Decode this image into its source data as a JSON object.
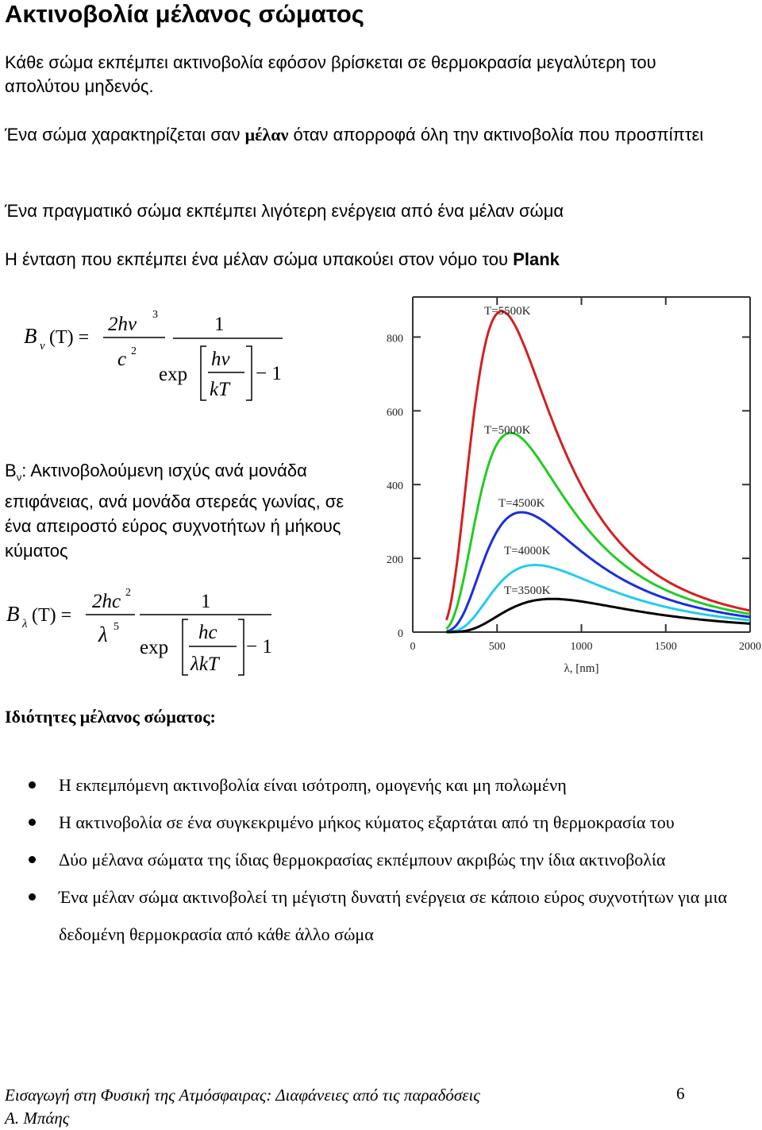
{
  "page_title": "Ακτινοβολία μέλανος σώματος",
  "paragraphs": {
    "p1": "Κάθε σώμα εκπέμπει ακτινοβολία εφόσον βρίσκεται σε θερμοκρασία μεγαλύτερη του απολύτου μηδενός.",
    "p2_before": "Ένα σώμα χαρακτηρίζεται σαν ",
    "p2_bold": "μέλαν",
    "p2_after": " όταν απορροφά όλη την ακτινοβολία που προσπίπτει",
    "p3": "Ένα πραγματικό σώμα εκπέμπει λιγότερη ενέργεια από ένα μέλαν σώμα",
    "p4_before": "Η ένταση που εκπέμπει ένα μέλαν σώμα υπακούει στον νόμο του ",
    "p4_bold": "Plank"
  },
  "formula_nu": {
    "lhs": "B",
    "lhs_sub": "ν",
    "arg": "(T) =",
    "num": "2hν",
    "num_exp": "3",
    "den": "c",
    "den_exp": "2",
    "one": "1",
    "exp": "exp",
    "inner_num": "hν",
    "inner_den": "kT",
    "minus_one": "− 1"
  },
  "definition": {
    "symbol": "B",
    "symbol_sub": "ν",
    "text": ": Ακτινοβολούμενη ισχύς ανά μονάδα επιφάνειας, ανά μονάδα στερεάς γωνίας, σε ένα απειροστό εύρος συχνοτήτων ή μήκους κύματος"
  },
  "formula_lambda": {
    "lhs": "B",
    "lhs_sub": "λ",
    "arg": "(T) =",
    "num": "2hc",
    "num_exp": "2",
    "den": "λ",
    "den_exp": "5",
    "one": "1",
    "exp": "exp",
    "inner_num": "hc",
    "inner_den": "λkT",
    "minus_one": "− 1"
  },
  "chart_data": {
    "type": "line",
    "title": "",
    "xlabel": "λ, [nm]",
    "ylabel": "",
    "xlim": [
      0,
      2000
    ],
    "ylim": [
      0,
      900
    ],
    "xticks": [
      "0",
      "500",
      "1000",
      "1500",
      "2000"
    ],
    "yticks": [
      "0",
      "200",
      "400",
      "600",
      "800"
    ],
    "grid": false,
    "series": [
      {
        "name": "T=5500K",
        "color": "#d42020",
        "peak_x": 527,
        "peak_y": 870
      },
      {
        "name": "T=5000K",
        "color": "#22cc22",
        "peak_x": 580,
        "peak_y": 540
      },
      {
        "name": "T=4500K",
        "color": "#1a2ee0",
        "peak_x": 645,
        "peak_y": 325
      },
      {
        "name": "T=4000K",
        "color": "#22ccee",
        "peak_x": 725,
        "peak_y": 182
      },
      {
        "name": "T=3500K",
        "color": "#000000",
        "peak_x": 828,
        "peak_y": 90
      }
    ]
  },
  "section_heading": "Ιδιότητες μέλανος σώματος:",
  "bullets": [
    "Η εκπεμπόμενη ακτινοβολία είναι ισότροπη, ομογενής και μη πολωμένη",
    "Η ακτινοβολία σε ένα συγκεκριμένο μήκος κύματος εξαρτάται από τη θερμοκρασία του",
    "Δύο μέλανα σώματα της ίδιας θερμοκρασίας εκπέμπουν ακριβώς την ίδια ακτινοβολία",
    "Ένα μέλαν σώμα ακτινοβολεί τη μέγιστη δυνατή ενέργεια σε κάποιο εύρος συχνοτήτων για μια δεδομένη θερμοκρασία από κάθε άλλο σώμα"
  ],
  "footer": {
    "line1": "Εισαγωγή στη Φυσική της Ατμόσφαιρας: Διαφάνειες από τις παραδόσεις",
    "line2": "Α. Μπάης",
    "page_number": "6"
  }
}
